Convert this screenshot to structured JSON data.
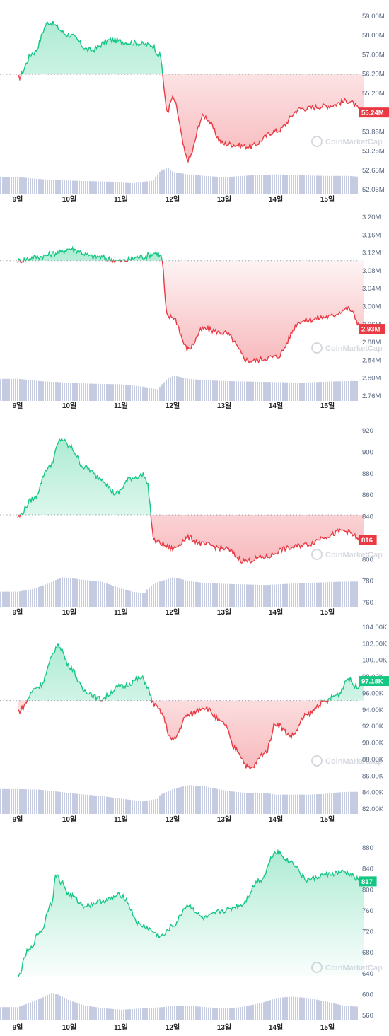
{
  "watermark": "CoinMarketCap",
  "colors": {
    "up": "#16c784",
    "down": "#ea3943",
    "volume": "#c5cbe0",
    "axis_text": "#58667e",
    "badge_text": "#ffffff"
  },
  "chart_data": [
    {
      "type": "line",
      "x_ticks": [
        "9일",
        "10일",
        "11일",
        "12일",
        "13일",
        "14일",
        "15일"
      ],
      "y_ticks": [
        "59.00M",
        "58.00M",
        "57.00M",
        "56.20M",
        "55.20M",
        "54.60M",
        "53.85M",
        "53.25M",
        "52.65M",
        "52.05M"
      ],
      "ylim": [
        52.0,
        59.3
      ],
      "baseline": 56.75,
      "current_label": "55.24M",
      "current_value": 55.24,
      "x_days": [
        0,
        0.3,
        0.6,
        1.0,
        1.4,
        1.8,
        2.2,
        2.6,
        2.75,
        2.9,
        3.0,
        3.3,
        3.6,
        4.0,
        4.5,
        5.0,
        5.5,
        6.0,
        6.4,
        6.7
      ],
      "y": [
        56.6,
        57.6,
        58.8,
        58.3,
        57.7,
        58.1,
        58.0,
        57.9,
        57.5,
        55.3,
        55.8,
        53.4,
        55.1,
        54.0,
        53.9,
        54.5,
        55.4,
        55.5,
        55.7,
        55.24
      ],
      "volume": [
        0.55,
        0.5,
        0.45,
        0.42,
        0.4,
        0.38,
        0.32,
        0.42,
        0.78,
        0.92,
        0.75,
        0.65,
        0.6,
        0.55,
        0.62,
        0.66,
        0.62,
        0.6,
        0.6,
        0.55
      ]
    },
    {
      "type": "line",
      "x_ticks": [
        "9일",
        "10일",
        "11일",
        "12일",
        "13일",
        "14일",
        "15일"
      ],
      "y_ticks": [
        "3.20M",
        "3.16M",
        "3.12M",
        "3.08M",
        "3.04M",
        "3.00M",
        "2.96M",
        "2.88M",
        "2.84M",
        "2.80M",
        "2.76M"
      ],
      "ylim": [
        2.75,
        3.225
      ],
      "baseline": 3.1,
      "current_label": "2.93M",
      "current_value": 2.93,
      "x_days": [
        0,
        0.4,
        0.8,
        1.0,
        1.5,
        2.0,
        2.4,
        2.7,
        2.78,
        2.9,
        3.0,
        3.3,
        3.6,
        4.0,
        4.5,
        5.0,
        5.5,
        6.0,
        6.4,
        6.7
      ],
      "y": [
        3.1,
        3.11,
        3.12,
        3.13,
        3.11,
        3.1,
        3.11,
        3.12,
        3.11,
        2.96,
        2.96,
        2.88,
        2.93,
        2.92,
        2.85,
        2.86,
        2.95,
        2.96,
        2.98,
        2.93
      ],
      "volume": [
        0.7,
        0.62,
        0.58,
        0.55,
        0.52,
        0.5,
        0.42,
        0.32,
        0.5,
        0.72,
        0.82,
        0.7,
        0.65,
        0.62,
        0.6,
        0.58,
        0.56,
        0.6,
        0.62,
        0.62
      ]
    },
    {
      "type": "line",
      "x_ticks": [
        "9일",
        "10일",
        "11일",
        "12일",
        "13일",
        "14일",
        "15일"
      ],
      "y_ticks": [
        "920",
        "900",
        "880",
        "860",
        "840",
        "820",
        "800",
        "780",
        "760"
      ],
      "ylim": [
        752,
        926
      ],
      "baseline": 840,
      "current_label": "816",
      "current_value": 816,
      "x_days": [
        0,
        0.3,
        0.6,
        0.85,
        1.0,
        1.3,
        1.6,
        1.9,
        2.2,
        2.45,
        2.5,
        2.65,
        3.0,
        3.3,
        3.6,
        4.0,
        4.4,
        4.8,
        5.2,
        5.6,
        6.0,
        6.3,
        6.7
      ],
      "y": [
        838,
        855,
        885,
        912,
        905,
        885,
        875,
        860,
        875,
        878,
        870,
        815,
        808,
        818,
        812,
        808,
        796,
        800,
        808,
        812,
        820,
        825,
        816
      ],
      "volume": [
        0.45,
        0.55,
        0.75,
        0.95,
        0.92,
        0.85,
        0.8,
        0.62,
        0.45,
        0.4,
        0.55,
        0.75,
        0.95,
        0.82,
        0.75,
        0.72,
        0.7,
        0.68,
        0.72,
        0.75,
        0.78,
        0.8,
        0.8
      ]
    },
    {
      "type": "line",
      "x_ticks": [
        "9일",
        "10일",
        "11일",
        "12일",
        "13일",
        "14일",
        "15일"
      ],
      "y_ticks": [
        "104.00K",
        "102.00K",
        "100.00K",
        "98.00K",
        "96.00K",
        "94.00K",
        "92.00K",
        "90.00K",
        "88.00K",
        "86.00K",
        "84.00K",
        "82.00K"
      ],
      "ylim": [
        81.0,
        104.5
      ],
      "baseline": 94.8,
      "current_label": "97.18K",
      "current_value": 97.18,
      "x_days": [
        0,
        0.4,
        0.8,
        1.0,
        1.3,
        1.6,
        2.0,
        2.4,
        2.7,
        2.75,
        3.0,
        3.3,
        3.6,
        4.0,
        4.2,
        4.5,
        4.8,
        5.0,
        5.3,
        5.6,
        5.9,
        6.2,
        6.4,
        6.55,
        6.7
      ],
      "y": [
        93.5,
        96.5,
        101.5,
        99.0,
        96.0,
        95.0,
        96.5,
        97.5,
        94.0,
        93.5,
        90.0,
        93.0,
        94.0,
        92.0,
        89.0,
        86.5,
        88.5,
        92.0,
        90.5,
        93.0,
        94.5,
        95.5,
        97.5,
        96.5,
        97.18
      ],
      "volume": [
        0.8,
        0.78,
        0.7,
        0.65,
        0.6,
        0.55,
        0.45,
        0.35,
        0.45,
        0.6,
        0.8,
        0.95,
        0.9,
        0.75,
        0.7,
        0.65,
        0.65,
        0.6,
        0.6,
        0.6,
        0.62,
        0.68,
        0.7,
        0.7,
        0.7
      ]
    },
    {
      "type": "area",
      "x_ticks": [
        "9일",
        "10일",
        "11일",
        "12일",
        "13일",
        "14일",
        "15일"
      ],
      "y_ticks": [
        "880",
        "840",
        "800",
        "760",
        "720",
        "680",
        "640",
        "600",
        "560"
      ],
      "ylim": [
        545,
        895
      ],
      "baseline": 630,
      "current_label": "817",
      "current_value": 817,
      "x_days": [
        0,
        0.2,
        0.45,
        0.65,
        0.75,
        0.85,
        1.0,
        1.3,
        1.7,
        2.0,
        2.4,
        2.8,
        3.0,
        3.3,
        3.6,
        4.0,
        4.3,
        4.7,
        5.0,
        5.3,
        5.6,
        6.0,
        6.3,
        6.7
      ],
      "y": [
        630,
        680,
        720,
        775,
        830,
        815,
        790,
        770,
        780,
        790,
        730,
        710,
        730,
        770,
        745,
        760,
        770,
        820,
        875,
        855,
        820,
        830,
        835,
        817
      ],
      "volume": [
        0.4,
        0.55,
        0.75,
        0.95,
        0.9,
        0.8,
        0.65,
        0.45,
        0.35,
        0.3,
        0.35,
        0.4,
        0.45,
        0.45,
        0.4,
        0.35,
        0.4,
        0.55,
        0.75,
        0.8,
        0.75,
        0.6,
        0.45,
        0.4
      ]
    }
  ]
}
